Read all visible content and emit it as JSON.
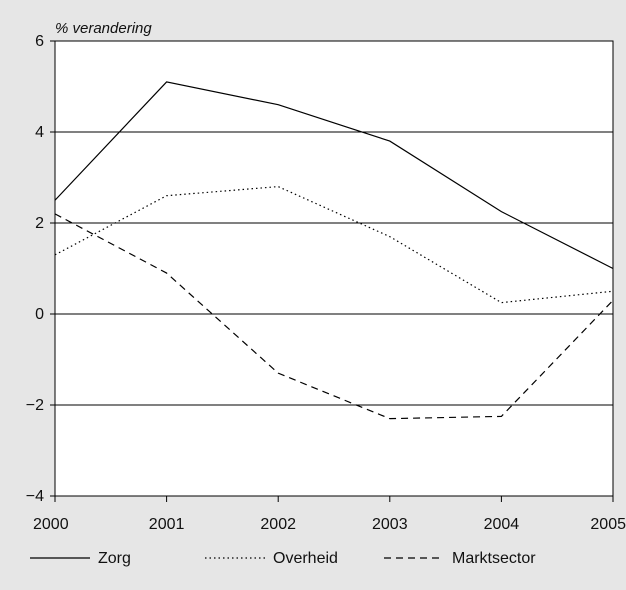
{
  "chart_data": {
    "type": "line",
    "ylabel": "% verandering",
    "xlabel": "",
    "x": [
      2000,
      2001,
      2002,
      2003,
      2004,
      2005
    ],
    "xlim": [
      2000,
      2005
    ],
    "ylim": [
      -4,
      6
    ],
    "x_ticks": [
      "2000",
      "2001",
      "2002",
      "2003",
      "2004",
      "2005"
    ],
    "y_ticks": [
      "−4",
      "−2",
      "0",
      "2",
      "4",
      "6"
    ],
    "y_tick_values": [
      -4,
      -2,
      0,
      2,
      4,
      6
    ],
    "grid": "horizontal",
    "legend_position": "bottom",
    "series": [
      {
        "name": "Zorg",
        "style": "solid",
        "values": [
          2.5,
          5.1,
          4.6,
          3.8,
          2.25,
          1.0
        ]
      },
      {
        "name": "Overheid",
        "style": "dotted",
        "values": [
          1.3,
          2.6,
          2.8,
          1.7,
          0.25,
          0.5
        ]
      },
      {
        "name": "Marktsector",
        "style": "dashed",
        "values": [
          2.2,
          0.9,
          -1.3,
          -2.3,
          -2.25,
          0.3
        ]
      }
    ]
  }
}
